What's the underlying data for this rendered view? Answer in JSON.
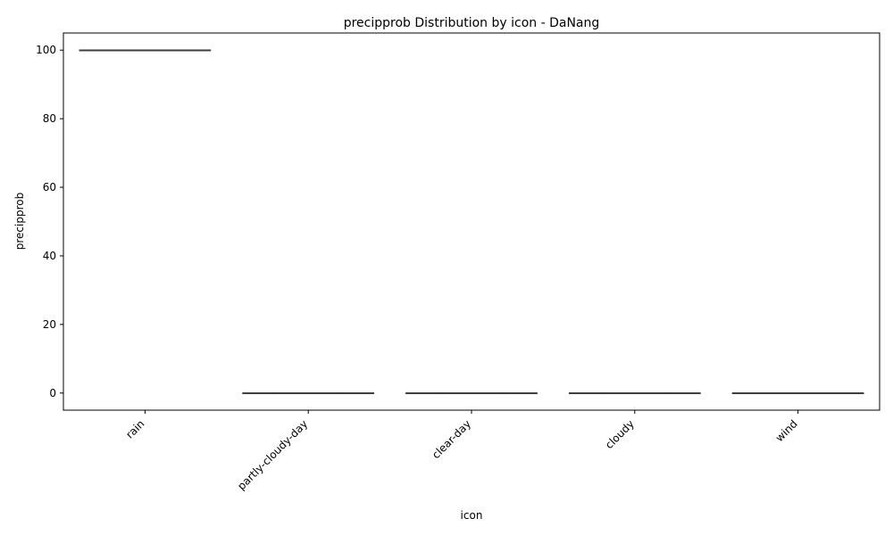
{
  "chart_data": {
    "type": "box",
    "title": "precipprob Distribution by icon - DaNang",
    "xlabel": "icon",
    "ylabel": "precipprob",
    "categories": [
      "rain",
      "partly-cloudy-day",
      "clear-day",
      "cloudy",
      "wind"
    ],
    "boxes": [
      {
        "category": "rain",
        "min": 100,
        "q1": 100,
        "median": 100,
        "q3": 100,
        "max": 100
      },
      {
        "category": "partly-cloudy-day",
        "min": 0,
        "q1": 0,
        "median": 0,
        "q3": 0,
        "max": 0
      },
      {
        "category": "clear-day",
        "min": 0,
        "q1": 0,
        "median": 0,
        "q3": 0,
        "max": 0
      },
      {
        "category": "cloudy",
        "min": 0,
        "q1": 0,
        "median": 0,
        "q3": 0,
        "max": 0
      },
      {
        "category": "wind",
        "min": 0,
        "q1": 0,
        "median": 0,
        "q3": 0,
        "max": 0
      }
    ],
    "ylim": [
      -5,
      105
    ],
    "yticks": [
      0,
      20,
      40,
      60,
      80,
      100
    ],
    "grid": false,
    "colors": {
      "box_line": "#3f3f3f",
      "axis": "#000000"
    }
  }
}
